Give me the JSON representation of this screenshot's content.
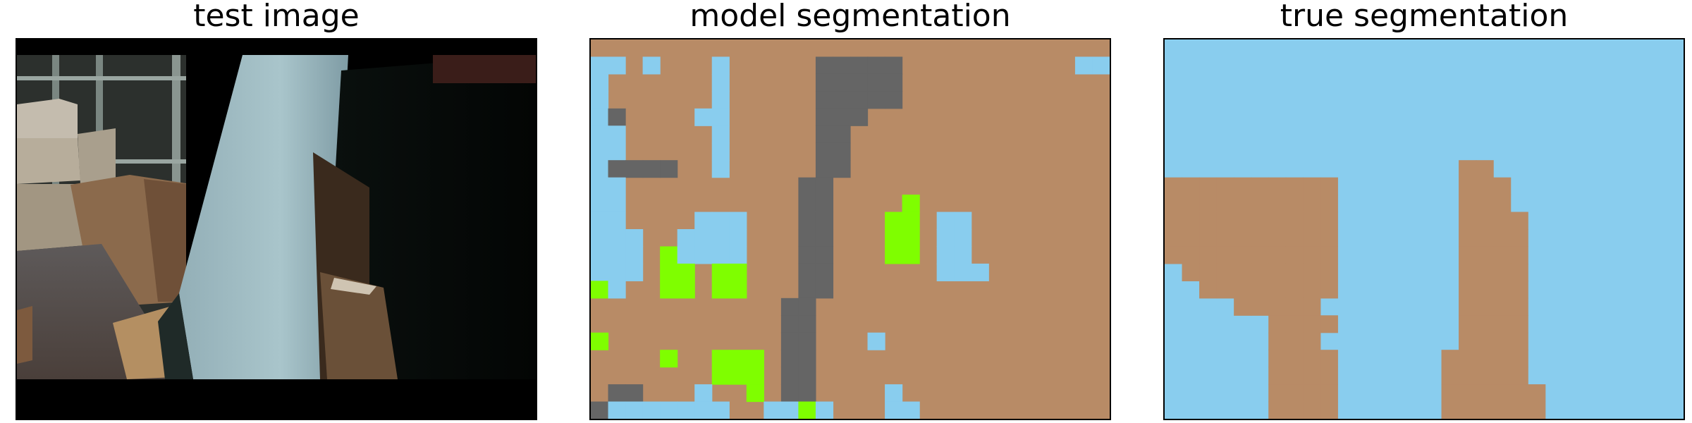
{
  "panels": [
    {
      "title": "test image"
    },
    {
      "title": "model segmentation"
    },
    {
      "title": "true segmentation"
    }
  ],
  "segmentation_colors": {
    "brown": "#b88b66",
    "blue": "#89cdee",
    "gray": "#656565",
    "green": "#7ffe00"
  }
}
